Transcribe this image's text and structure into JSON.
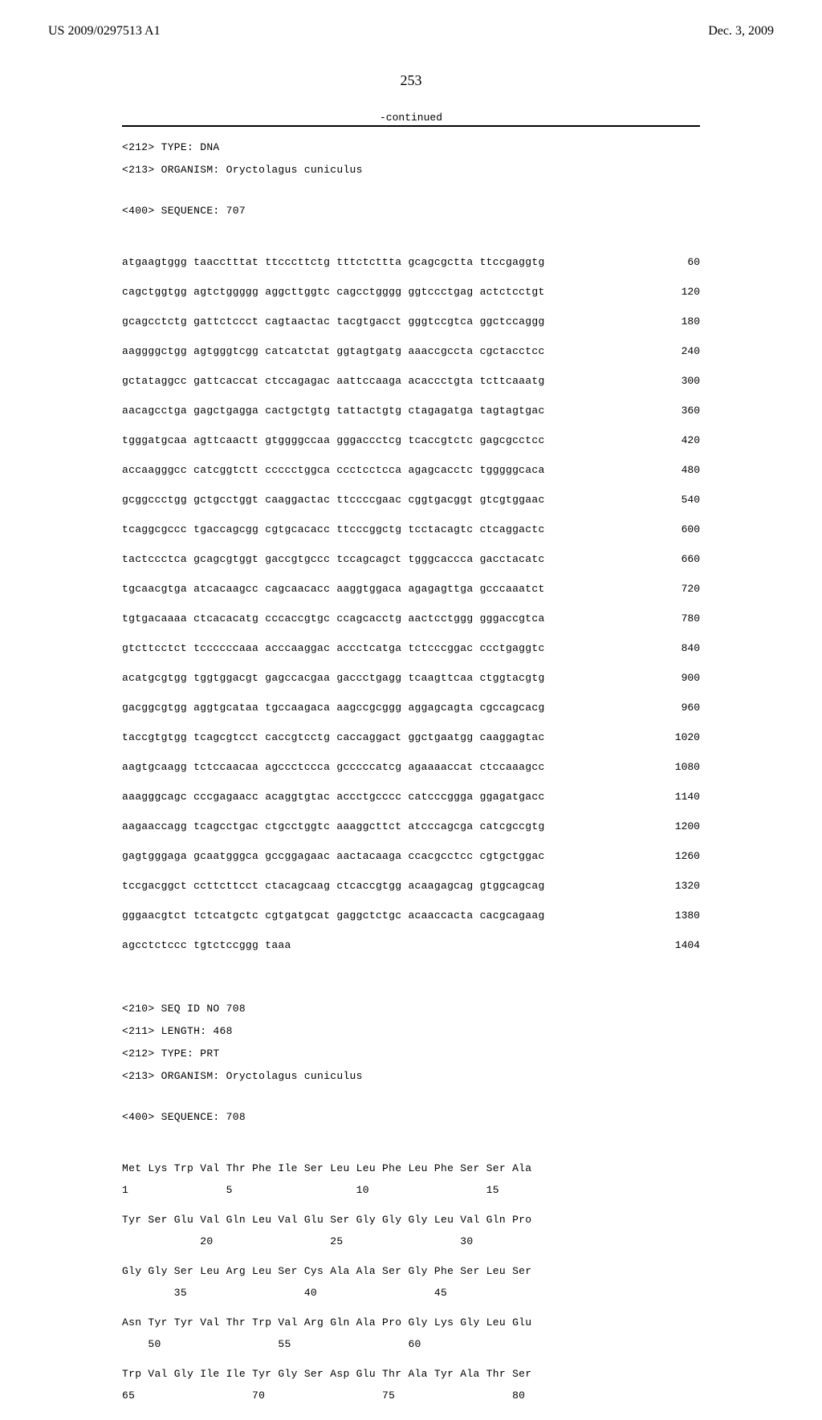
{
  "header": {
    "publication_number": "US 2009/0297513 A1",
    "publication_date": "Dec. 3, 2009"
  },
  "page_number": "253",
  "continued_label": "-continued",
  "meta707": {
    "type": "<212> TYPE: DNA",
    "organism": "<213> ORGANISM: Oryctolagus cuniculus",
    "sequence": "<400> SEQUENCE: 707"
  },
  "dna": [
    {
      "g": "atgaagtggg taacctttat ttcccttctg tttctcttta gcagcgctta ttccgaggtg",
      "p": "60"
    },
    {
      "g": "cagctggtgg agtctggggg aggcttggtc cagcctgggg ggtccctgag actctcctgt",
      "p": "120"
    },
    {
      "g": "gcagcctctg gattctccct cagtaactac tacgtgacct gggtccgtca ggctccaggg",
      "p": "180"
    },
    {
      "g": "aaggggctgg agtgggtcgg catcatctat ggtagtgatg aaaccgccta cgctacctcc",
      "p": "240"
    },
    {
      "g": "gctataggcc gattcaccat ctccagagac aattccaaga acaccctgta tcttcaaatg",
      "p": "300"
    },
    {
      "g": "aacagcctga gagctgagga cactgctgtg tattactgtg ctagagatga tagtagtgac",
      "p": "360"
    },
    {
      "g": "tgggatgcaa agttcaactt gtggggccaa gggaccctcg tcaccgtctc gagcgcctcc",
      "p": "420"
    },
    {
      "g": "accaagggcc catcggtctt ccccctggca ccctcctcca agagcacctc tgggggcaca",
      "p": "480"
    },
    {
      "g": "gcggccctgg gctgcctggt caaggactac ttccccgaac cggtgacggt gtcgtggaac",
      "p": "540"
    },
    {
      "g": "tcaggcgccc tgaccagcgg cgtgcacacc ttcccggctg tcctacagtc ctcaggactc",
      "p": "600"
    },
    {
      "g": "tactccctca gcagcgtggt gaccgtgccc tccagcagct tgggcaccca gacctacatc",
      "p": "660"
    },
    {
      "g": "tgcaacgtga atcacaagcc cagcaacacc aaggtggaca agagagttga gcccaaatct",
      "p": "720"
    },
    {
      "g": "tgtgacaaaa ctcacacatg cccaccgtgc ccagcacctg aactcctggg gggaccgtca",
      "p": "780"
    },
    {
      "g": "gtcttcctct tccccccaaa acccaaggac accctcatga tctcccggac ccctgaggtc",
      "p": "840"
    },
    {
      "g": "acatgcgtgg tggtggacgt gagccacgaa gaccctgagg tcaagttcaa ctggtacgtg",
      "p": "900"
    },
    {
      "g": "gacggcgtgg aggtgcataa tgccaagaca aagccgcggg aggagcagta cgccagcacg",
      "p": "960"
    },
    {
      "g": "taccgtgtgg tcagcgtcct caccgtcctg caccaggact ggctgaatgg caaggagtac",
      "p": "1020"
    },
    {
      "g": "aagtgcaagg tctccaacaa agccctccca gcccccatcg agaaaaccat ctccaaagcc",
      "p": "1080"
    },
    {
      "g": "aaagggcagc cccgagaacc acaggtgtac accctgcccc catcccggga ggagatgacc",
      "p": "1140"
    },
    {
      "g": "aagaaccagg tcagcctgac ctgcctggtc aaaggcttct atcccagcga catcgccgtg",
      "p": "1200"
    },
    {
      "g": "gagtgggaga gcaatgggca gccggagaac aactacaaga ccacgcctcc cgtgctggac",
      "p": "1260"
    },
    {
      "g": "tccgacggct ccttcttcct ctacagcaag ctcaccgtgg acaagagcag gtggcagcag",
      "p": "1320"
    },
    {
      "g": "gggaacgtct tctcatgctc cgtgatgcat gaggctctgc acaaccacta cacgcagaag",
      "p": "1380"
    },
    {
      "g": "agcctctccc tgtctccggg taaa",
      "p": "1404"
    }
  ],
  "meta708": {
    "seqid": "<210> SEQ ID NO 708",
    "length": "<211> LENGTH: 468",
    "type": "<212> TYPE: PRT",
    "organism": "<213> ORGANISM: Oryctolagus cuniculus",
    "sequence": "<400> SEQUENCE: 708"
  },
  "protein": [
    {
      "aa": "Met Lys Trp Val Thr Phe Ile Ser Leu Leu Phe Leu Phe Ser Ser Ala",
      "nums": "1               5                   10                  15"
    },
    {
      "aa": "Tyr Ser Glu Val Gln Leu Val Glu Ser Gly Gly Gly Leu Val Gln Pro",
      "nums": "            20                  25                  30"
    },
    {
      "aa": "Gly Gly Ser Leu Arg Leu Ser Cys Ala Ala Ser Gly Phe Ser Leu Ser",
      "nums": "        35                  40                  45"
    },
    {
      "aa": "Asn Tyr Tyr Val Thr Trp Val Arg Gln Ala Pro Gly Lys Gly Leu Glu",
      "nums": "    50                  55                  60"
    },
    {
      "aa": "Trp Val Gly Ile Ile Tyr Gly Ser Asp Glu Thr Ala Tyr Ala Thr Ser",
      "nums": "65                  70                  75                  80"
    }
  ]
}
